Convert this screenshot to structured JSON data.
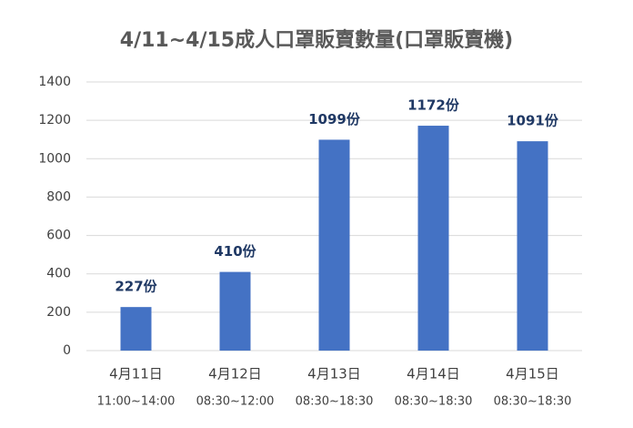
{
  "chart_data": {
    "type": "bar",
    "title": "4/11~4/15成人口罩販賣數量(口罩販賣機)",
    "categories": [
      "4月11日",
      "4月12日",
      "4月13日",
      "4月14日",
      "4月15日"
    ],
    "time_ranges": [
      "11:00~14:00",
      "08:30~12:00",
      "08:30~18:30",
      "08:30~18:30",
      "08:30~18:30"
    ],
    "values": [
      227,
      410,
      1099,
      1172,
      1091
    ],
    "value_labels": [
      "227份",
      "410份",
      "1099份",
      "1172份",
      "1091份"
    ],
    "color": "#4472c4",
    "ylim": [
      0,
      1400
    ],
    "yticks": [
      0,
      200,
      400,
      600,
      800,
      1000,
      1200,
      1400
    ],
    "grid": true
  }
}
